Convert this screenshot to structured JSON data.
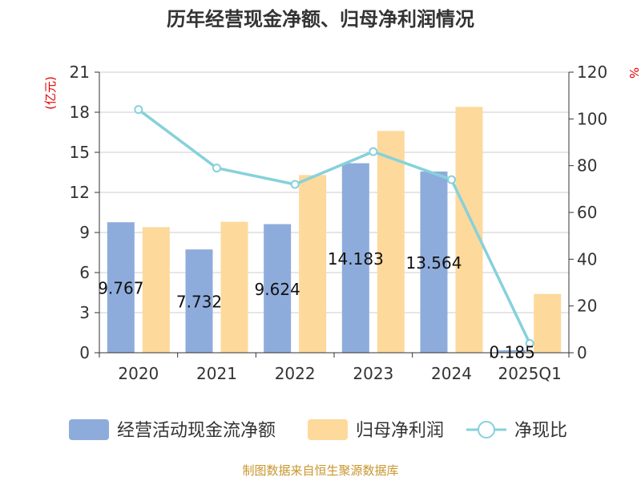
{
  "chart_data": {
    "type": "bar",
    "title": "历年经营现金净额、归母净利润情况",
    "categories": [
      "2020",
      "2021",
      "2022",
      "2023",
      "2024",
      "2025Q1"
    ],
    "series": [
      {
        "name": "经营活动现金流净额",
        "type": "bar",
        "axis": "left",
        "color": "#8eacdb",
        "values": [
          9.767,
          7.732,
          9.624,
          14.183,
          13.564,
          0.185
        ],
        "labels": [
          "9.767",
          "7.732",
          "9.624",
          "14.183",
          "13.564",
          "0.185"
        ]
      },
      {
        "name": "归母净利润",
        "type": "bar",
        "axis": "left",
        "color": "#fdd99b",
        "values": [
          9.4,
          9.8,
          13.3,
          16.6,
          18.4,
          4.4
        ]
      },
      {
        "name": "净现比",
        "type": "line",
        "axis": "right",
        "color": "#86d1dc",
        "values": [
          104,
          79,
          72,
          86,
          74,
          4
        ]
      }
    ],
    "left_axis": {
      "label": "(亿元)",
      "min": 0,
      "max": 21,
      "ticks": [
        0,
        3,
        6,
        9,
        12,
        15,
        18,
        21
      ]
    },
    "right_axis": {
      "label": "%",
      "min": 0,
      "max": 120,
      "ticks": [
        0,
        20,
        40,
        60,
        80,
        100,
        120
      ]
    },
    "legend_position": "bottom",
    "grid": true
  },
  "source": "制图数据来自恒生聚源数据库",
  "colors": {
    "title": "#333333",
    "axis_label": "#e60000",
    "source": "#c8962e",
    "grid": "#cccccc",
    "axis": "#333333"
  }
}
